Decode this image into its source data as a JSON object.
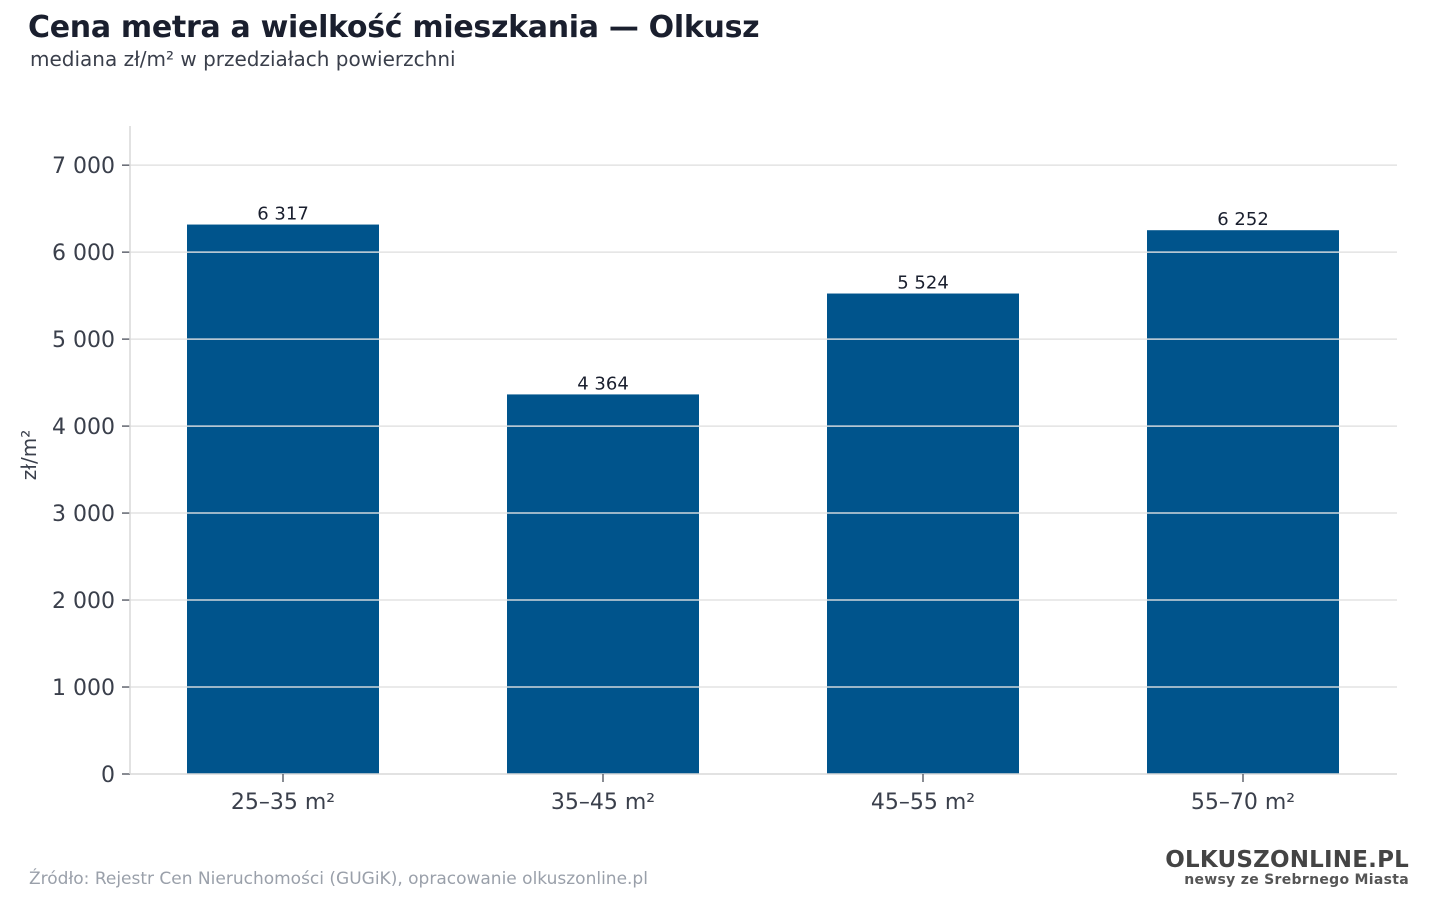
{
  "header": {
    "title": "Cena metra a wielkość mieszkania — Olkusz",
    "subtitle": "mediana zł/m² w przedziałach powierzchni"
  },
  "chart_data": {
    "type": "bar",
    "categories": [
      "25–35 m²",
      "35–45 m²",
      "45–55 m²",
      "55–70 m²"
    ],
    "values": [
      6317,
      4364,
      5524,
      6252
    ],
    "value_labels": [
      "6 317",
      "4 364",
      "5 524",
      "6 252"
    ],
    "title": "Cena metra a wielkość mieszkania — Olkusz",
    "subtitle": "mediana zł/m² w przedziałach powierzchni",
    "xlabel": "",
    "ylabel": "zł/m²",
    "ylim": [
      0,
      7450
    ],
    "yticks": [
      0,
      1000,
      2000,
      3000,
      4000,
      5000,
      6000,
      7000
    ],
    "ytick_labels": [
      "0",
      "1 000",
      "2 000",
      "3 000",
      "4 000",
      "5 000",
      "6 000",
      "7 000"
    ],
    "grid": "horizontal",
    "legend": "none",
    "colors": {
      "bar": "#00548c",
      "grid": "#e6e6e6",
      "axis": "#d9d9d9",
      "text": "#3a3f4b"
    }
  },
  "footer": {
    "source": "Źródło: Rejestr Cen Nieruchomości (GUGiK), opracowanie olkuszonline.pl",
    "brand_name": "OLKUSZONLINE.PL",
    "brand_tagline": "newsy ze Srebrnego Miasta"
  }
}
